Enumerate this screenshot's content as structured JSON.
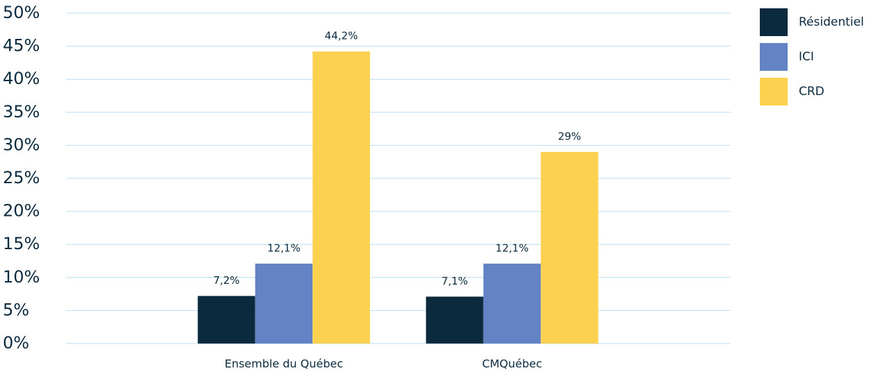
{
  "chart_data": {
    "type": "bar",
    "categories": [
      "Ensemble du Québec",
      "CMQuébec"
    ],
    "series": [
      {
        "name": "Résidentiel",
        "color": "#0b2a3d",
        "values": [
          7.2,
          7.1
        ],
        "value_labels": [
          "7,2%",
          "7,1%"
        ]
      },
      {
        "name": "ICI",
        "color": "#6383c4",
        "values": [
          12.1,
          12.1
        ],
        "value_labels": [
          "12,1%",
          "12,1%"
        ]
      },
      {
        "name": "CRD",
        "color": "#fcd150",
        "values": [
          44.2,
          29
        ],
        "value_labels": [
          "44,2%",
          "29%"
        ]
      }
    ],
    "ylim": [
      0,
      50
    ],
    "yticks": [
      {
        "value": 0,
        "label": "0%"
      },
      {
        "value": 5,
        "label": "5%"
      },
      {
        "value": 10,
        "label": "10%"
      },
      {
        "value": 15,
        "label": "15%"
      },
      {
        "value": 20,
        "label": "20%"
      },
      {
        "value": 25,
        "label": "25%"
      },
      {
        "value": 30,
        "label": "30%"
      },
      {
        "value": 35,
        "label": "35%"
      },
      {
        "value": 40,
        "label": "40%"
      },
      {
        "value": 45,
        "label": "45%"
      },
      {
        "value": 50,
        "label": "50%"
      }
    ],
    "grid": true,
    "legend": "right"
  }
}
